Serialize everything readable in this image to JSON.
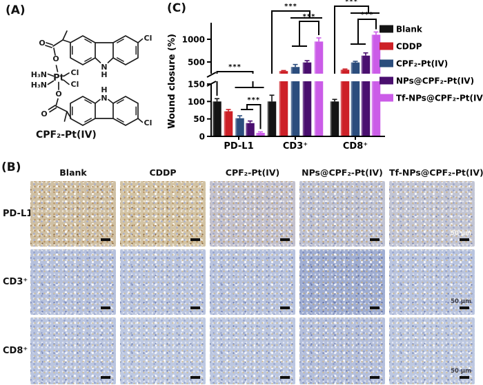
{
  "figure": {
    "panel_a_label": "(A)",
    "panel_b_label": "(B)",
    "panel_c_label": "(C)"
  },
  "structure": {
    "name": "CPF₂-Pt(IV)",
    "atoms": {
      "pt": "Pt",
      "amine": "H₃N",
      "chloride": "Cl",
      "oxygen": "O",
      "nitrogen": "N",
      "hydrogen": "H"
    }
  },
  "chart_data": {
    "type": "bar",
    "title": "",
    "xlabel": "",
    "ylabel": "Wound closure (%)",
    "categories": [
      "PD-L1",
      "CD3⁺",
      "CD8⁺"
    ],
    "series": [
      {
        "name": "Blank",
        "color": "#141414",
        "values": [
          100,
          100,
          100
        ],
        "errors": [
          8,
          18,
          6
        ]
      },
      {
        "name": "CDDP",
        "color": "#cd2027",
        "values": [
          72,
          300,
          330
        ],
        "errors": [
          5,
          12,
          15
        ]
      },
      {
        "name": "CPF₂-Pt(IV)",
        "color": "#2b4d7d",
        "values": [
          52,
          390,
          490
        ],
        "errors": [
          7,
          55,
          25
        ]
      },
      {
        "name": "NPs@CPF₂-Pt(IV)",
        "color": "#4a0f6f",
        "values": [
          38,
          490,
          640
        ],
        "errors": [
          6,
          40,
          60
        ]
      },
      {
        "name": "Tf-NPs@CPF₂-Pt(IV)",
        "color": "#cb5ce8",
        "values": [
          10,
          950,
          1100
        ],
        "errors": [
          3,
          80,
          60
        ]
      }
    ],
    "yticks_lower": [
      0,
      50,
      100,
      150
    ],
    "yticks_upper": [
      500,
      1000
    ],
    "axis_break": true,
    "legend_position": "right",
    "significance": {
      "outer_labels": [
        "***",
        "***",
        "***"
      ],
      "inner_labels": [
        "***",
        "***",
        "***"
      ]
    }
  },
  "panel_b": {
    "columns": [
      "Blank",
      "CDDP",
      "CPF₂-Pt(IV)",
      "NPs@CPF₂-Pt(IV)",
      "Tf-NPs@CPF₂-Pt(IV)"
    ],
    "rows": [
      "PD-L1",
      "CD3⁺",
      "CD8⁺"
    ],
    "scale_bar_label": "50 μm",
    "scale_label_colors": [
      "#f7f4ec",
      "#3c3c46",
      "#3c3c46"
    ],
    "cells": [
      [
        {
          "b": "#cfc0a4",
          "c": "#a8aecb",
          "w": "#b9925f",
          "n": "#8a6a42"
        },
        {
          "b": "#d2c3a4",
          "c": "#aab0cc",
          "w": "#bb9560",
          "n": "#8d6c44"
        },
        {
          "b": "#c3c1cd",
          "c": "#9aa5c9",
          "w": "#c2a678",
          "n": "#7d86ad"
        },
        {
          "b": "#bfc2d2",
          "c": "#96a1c8",
          "w": "#c6ab80",
          "n": "#7881a9"
        },
        {
          "b": "#c2c5d4",
          "c": "#9aa5ca",
          "w": "#ccb48d",
          "n": "#7b84ab"
        }
      ],
      [
        {
          "b": "#b6c1dd",
          "c": "#93a1cb",
          "w": "#cbbda0",
          "n": "#6d7cb0"
        },
        {
          "b": "#b9c4df",
          "c": "#95a3cc",
          "w": "#ccbfa2",
          "n": "#6f7eb1"
        },
        {
          "b": "#b7c2de",
          "c": "#93a1cb",
          "w": "#cabca0",
          "n": "#6d7cb0"
        },
        {
          "b": "#9fadd2",
          "c": "#7e8dbd",
          "w": "#b7a98f",
          "n": "#5a6aa0"
        },
        {
          "b": "#b9c4df",
          "c": "#95a3cc",
          "w": "#c9bb9e",
          "n": "#6f7eb1"
        }
      ],
      [
        {
          "b": "#bac5e0",
          "c": "#96a4cd",
          "w": "#ccbfa2",
          "n": "#7080b2"
        },
        {
          "b": "#bec9e2",
          "c": "#9aa8cf",
          "w": "#cec1a4",
          "n": "#7383b4"
        },
        {
          "b": "#bcc7e1",
          "c": "#98a6ce",
          "w": "#ccbfa2",
          "n": "#7181b3"
        },
        {
          "b": "#b4bfdc",
          "c": "#8f9dc9",
          "w": "#c8ba9d",
          "n": "#6a79ae"
        },
        {
          "b": "#bdc8e1",
          "c": "#99a7ce",
          "w": "#cfc2a5",
          "n": "#7282b3"
        }
      ]
    ]
  }
}
